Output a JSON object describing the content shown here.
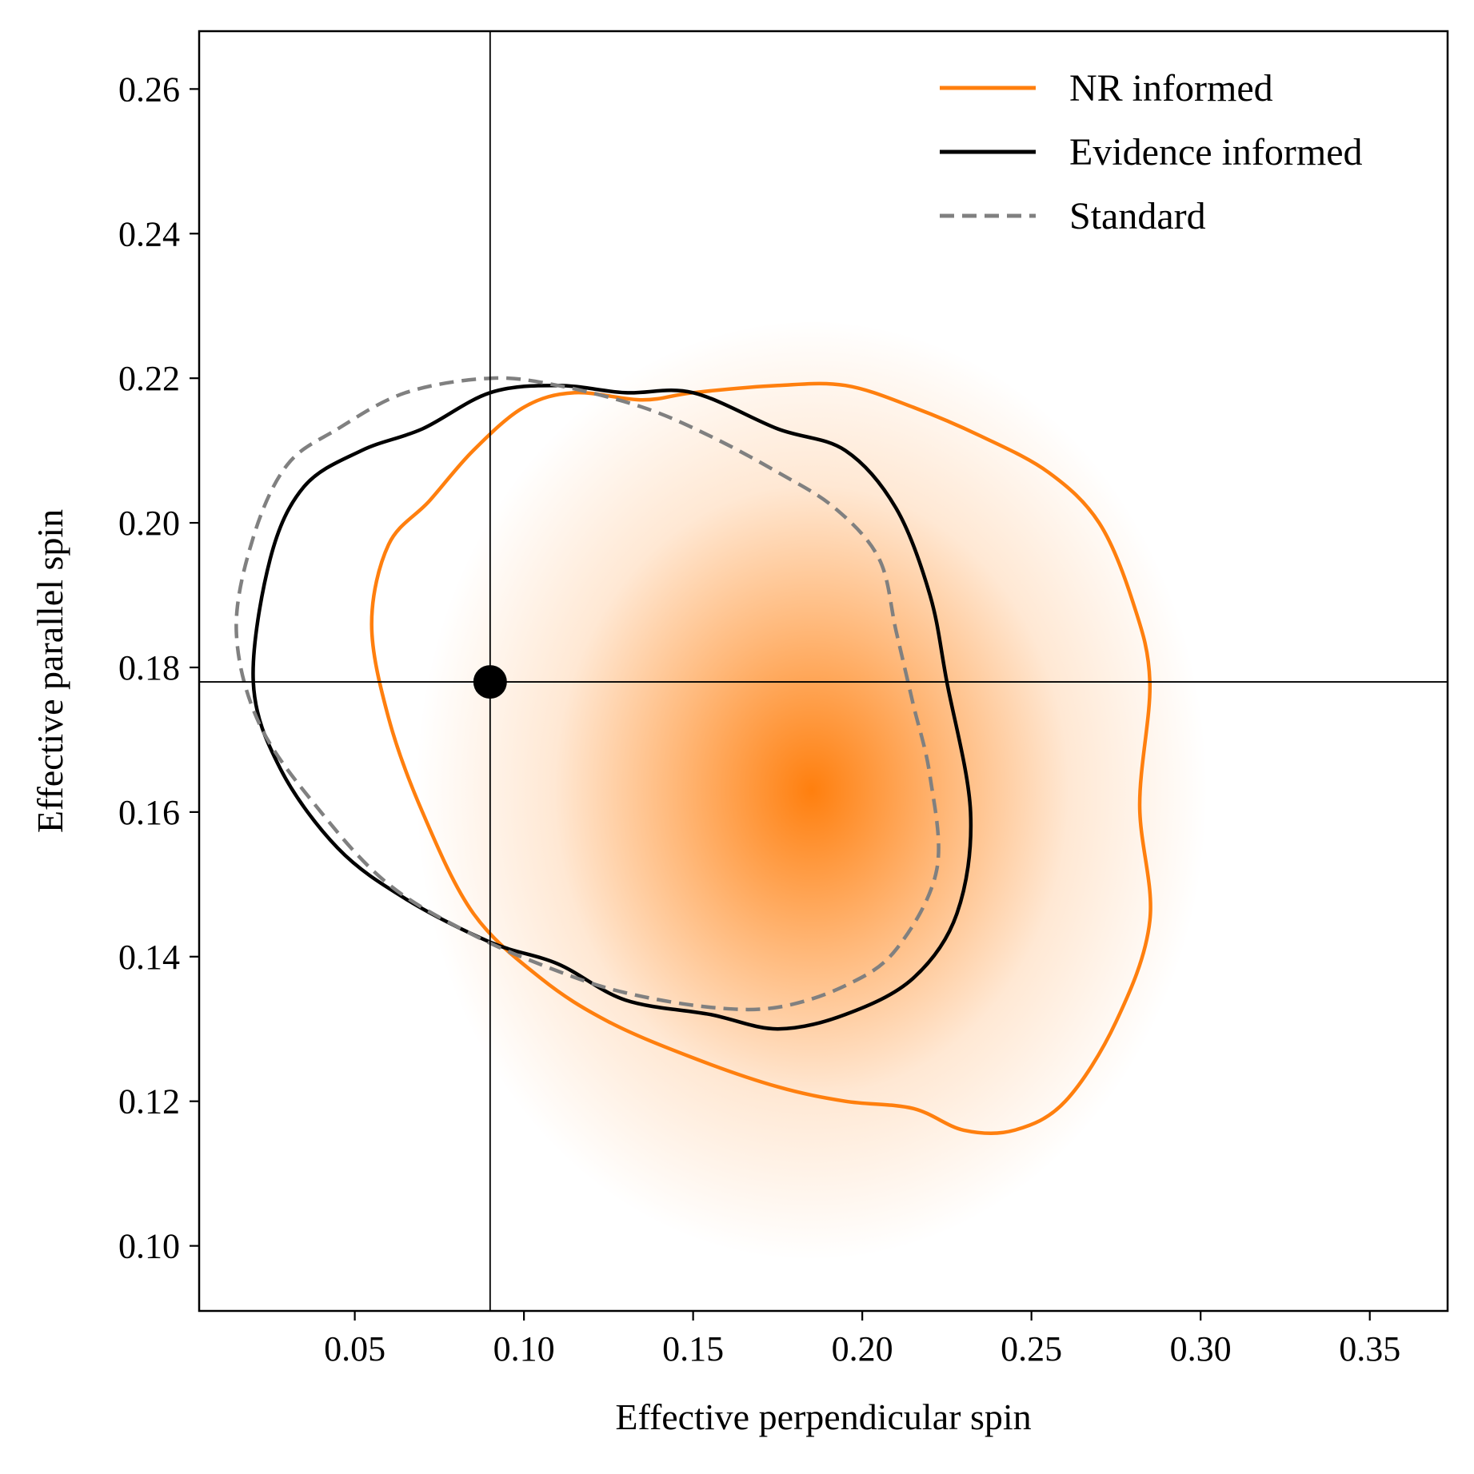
{
  "chart_data": {
    "type": "contour",
    "title": "",
    "xlabel": "Effective perpendicular spin",
    "ylabel": "Effective parallel spin",
    "xlim": [
      0.004,
      0.373
    ],
    "ylim": [
      0.091,
      0.268
    ],
    "xticks": [
      0.05,
      0.1,
      0.15,
      0.2,
      0.25,
      0.3,
      0.35
    ],
    "xtick_labels": [
      "0.05",
      "0.10",
      "0.15",
      "0.20",
      "0.25",
      "0.30",
      "0.35"
    ],
    "yticks": [
      0.1,
      0.12,
      0.14,
      0.16,
      0.18,
      0.2,
      0.22,
      0.24,
      0.26
    ],
    "ytick_labels": [
      "0.10",
      "0.12",
      "0.14",
      "0.16",
      "0.18",
      "0.20",
      "0.22",
      "0.24",
      "0.26"
    ],
    "grid": false,
    "legend": {
      "placement": "top-right",
      "entries": [
        {
          "label": "NR informed",
          "color": "#ff7f0e",
          "style": "solid"
        },
        {
          "label": "Evidence informed",
          "color": "#000000",
          "style": "solid"
        },
        {
          "label": "Standard",
          "color": "#808080",
          "style": "dashed"
        }
      ]
    },
    "density": {
      "color": "#ff7f0e",
      "peak": [
        0.185,
        0.163
      ],
      "spread": [
        0.065,
        0.025
      ]
    },
    "injection": {
      "x": 0.09,
      "y": 0.178,
      "color": "#000000"
    },
    "series": [
      {
        "name": "NR informed",
        "color": "#ff7f0e",
        "dash": false,
        "points": [
          [
            0.1,
            0.216
          ],
          [
            0.115,
            0.218
          ],
          [
            0.135,
            0.217
          ],
          [
            0.15,
            0.218
          ],
          [
            0.175,
            0.219
          ],
          [
            0.195,
            0.219
          ],
          [
            0.215,
            0.216
          ],
          [
            0.235,
            0.212
          ],
          [
            0.255,
            0.207
          ],
          [
            0.27,
            0.2
          ],
          [
            0.28,
            0.189
          ],
          [
            0.285,
            0.178
          ],
          [
            0.282,
            0.161
          ],
          [
            0.285,
            0.145
          ],
          [
            0.275,
            0.131
          ],
          [
            0.26,
            0.12
          ],
          [
            0.245,
            0.116
          ],
          [
            0.23,
            0.116
          ],
          [
            0.215,
            0.119
          ],
          [
            0.195,
            0.12
          ],
          [
            0.175,
            0.122
          ],
          [
            0.15,
            0.126
          ],
          [
            0.125,
            0.131
          ],
          [
            0.105,
            0.137
          ],
          [
            0.085,
            0.146
          ],
          [
            0.07,
            0.16
          ],
          [
            0.06,
            0.173
          ],
          [
            0.055,
            0.186
          ],
          [
            0.06,
            0.197
          ],
          [
            0.072,
            0.203
          ],
          [
            0.085,
            0.21
          ]
        ]
      },
      {
        "name": "Evidence informed",
        "color": "#000000",
        "dash": false,
        "points": [
          [
            0.07,
            0.213
          ],
          [
            0.09,
            0.218
          ],
          [
            0.11,
            0.219
          ],
          [
            0.13,
            0.218
          ],
          [
            0.15,
            0.218
          ],
          [
            0.175,
            0.213
          ],
          [
            0.195,
            0.21
          ],
          [
            0.21,
            0.202
          ],
          [
            0.22,
            0.19
          ],
          [
            0.225,
            0.178
          ],
          [
            0.232,
            0.16
          ],
          [
            0.228,
            0.146
          ],
          [
            0.215,
            0.137
          ],
          [
            0.195,
            0.132
          ],
          [
            0.175,
            0.13
          ],
          [
            0.155,
            0.132
          ],
          [
            0.13,
            0.134
          ],
          [
            0.11,
            0.139
          ],
          [
            0.09,
            0.142
          ],
          [
            0.065,
            0.148
          ],
          [
            0.045,
            0.155
          ],
          [
            0.028,
            0.166
          ],
          [
            0.02,
            0.178
          ],
          [
            0.025,
            0.195
          ],
          [
            0.035,
            0.205
          ],
          [
            0.052,
            0.21
          ]
        ]
      },
      {
        "name": "Standard",
        "color": "#808080",
        "dash": true,
        "points": [
          [
            0.045,
            0.213
          ],
          [
            0.065,
            0.218
          ],
          [
            0.09,
            0.22
          ],
          [
            0.11,
            0.219
          ],
          [
            0.135,
            0.216
          ],
          [
            0.155,
            0.212
          ],
          [
            0.175,
            0.207
          ],
          [
            0.192,
            0.202
          ],
          [
            0.205,
            0.195
          ],
          [
            0.21,
            0.185
          ],
          [
            0.215,
            0.175
          ],
          [
            0.22,
            0.165
          ],
          [
            0.222,
            0.152
          ],
          [
            0.21,
            0.141
          ],
          [
            0.195,
            0.136
          ],
          [
            0.175,
            0.133
          ],
          [
            0.155,
            0.133
          ],
          [
            0.13,
            0.135
          ],
          [
            0.11,
            0.138
          ],
          [
            0.085,
            0.143
          ],
          [
            0.06,
            0.15
          ],
          [
            0.04,
            0.16
          ],
          [
            0.022,
            0.172
          ],
          [
            0.015,
            0.185
          ],
          [
            0.02,
            0.198
          ],
          [
            0.03,
            0.208
          ]
        ]
      }
    ]
  }
}
